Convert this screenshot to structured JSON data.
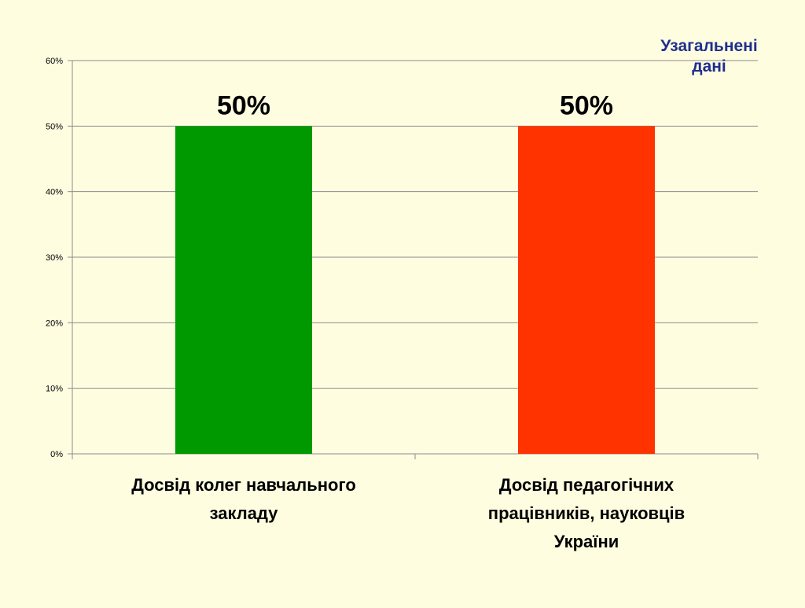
{
  "chart_data": {
    "type": "bar",
    "title": "Узагальнені дані",
    "title_lines": [
      "Узагальнені",
      "дані"
    ],
    "categories": [
      [
        "Досвід колег навчального",
        "закладу"
      ],
      [
        "Досвід педагогічних",
        "працівників, науковців",
        "України"
      ]
    ],
    "values": [
      50,
      50
    ],
    "data_labels": [
      "50%",
      "50%"
    ],
    "bar_colors": [
      "#009900",
      "#FF3300"
    ],
    "yticks": [
      "0%",
      "10%",
      "20%",
      "30%",
      "40%",
      "50%",
      "60%"
    ],
    "ylim": [
      0,
      60
    ],
    "grid": true,
    "xlabel": "",
    "ylabel": ""
  },
  "colors": {
    "background": "#FFFDE0",
    "title": "#1F2F8F",
    "grid": "#8C8C8C"
  }
}
